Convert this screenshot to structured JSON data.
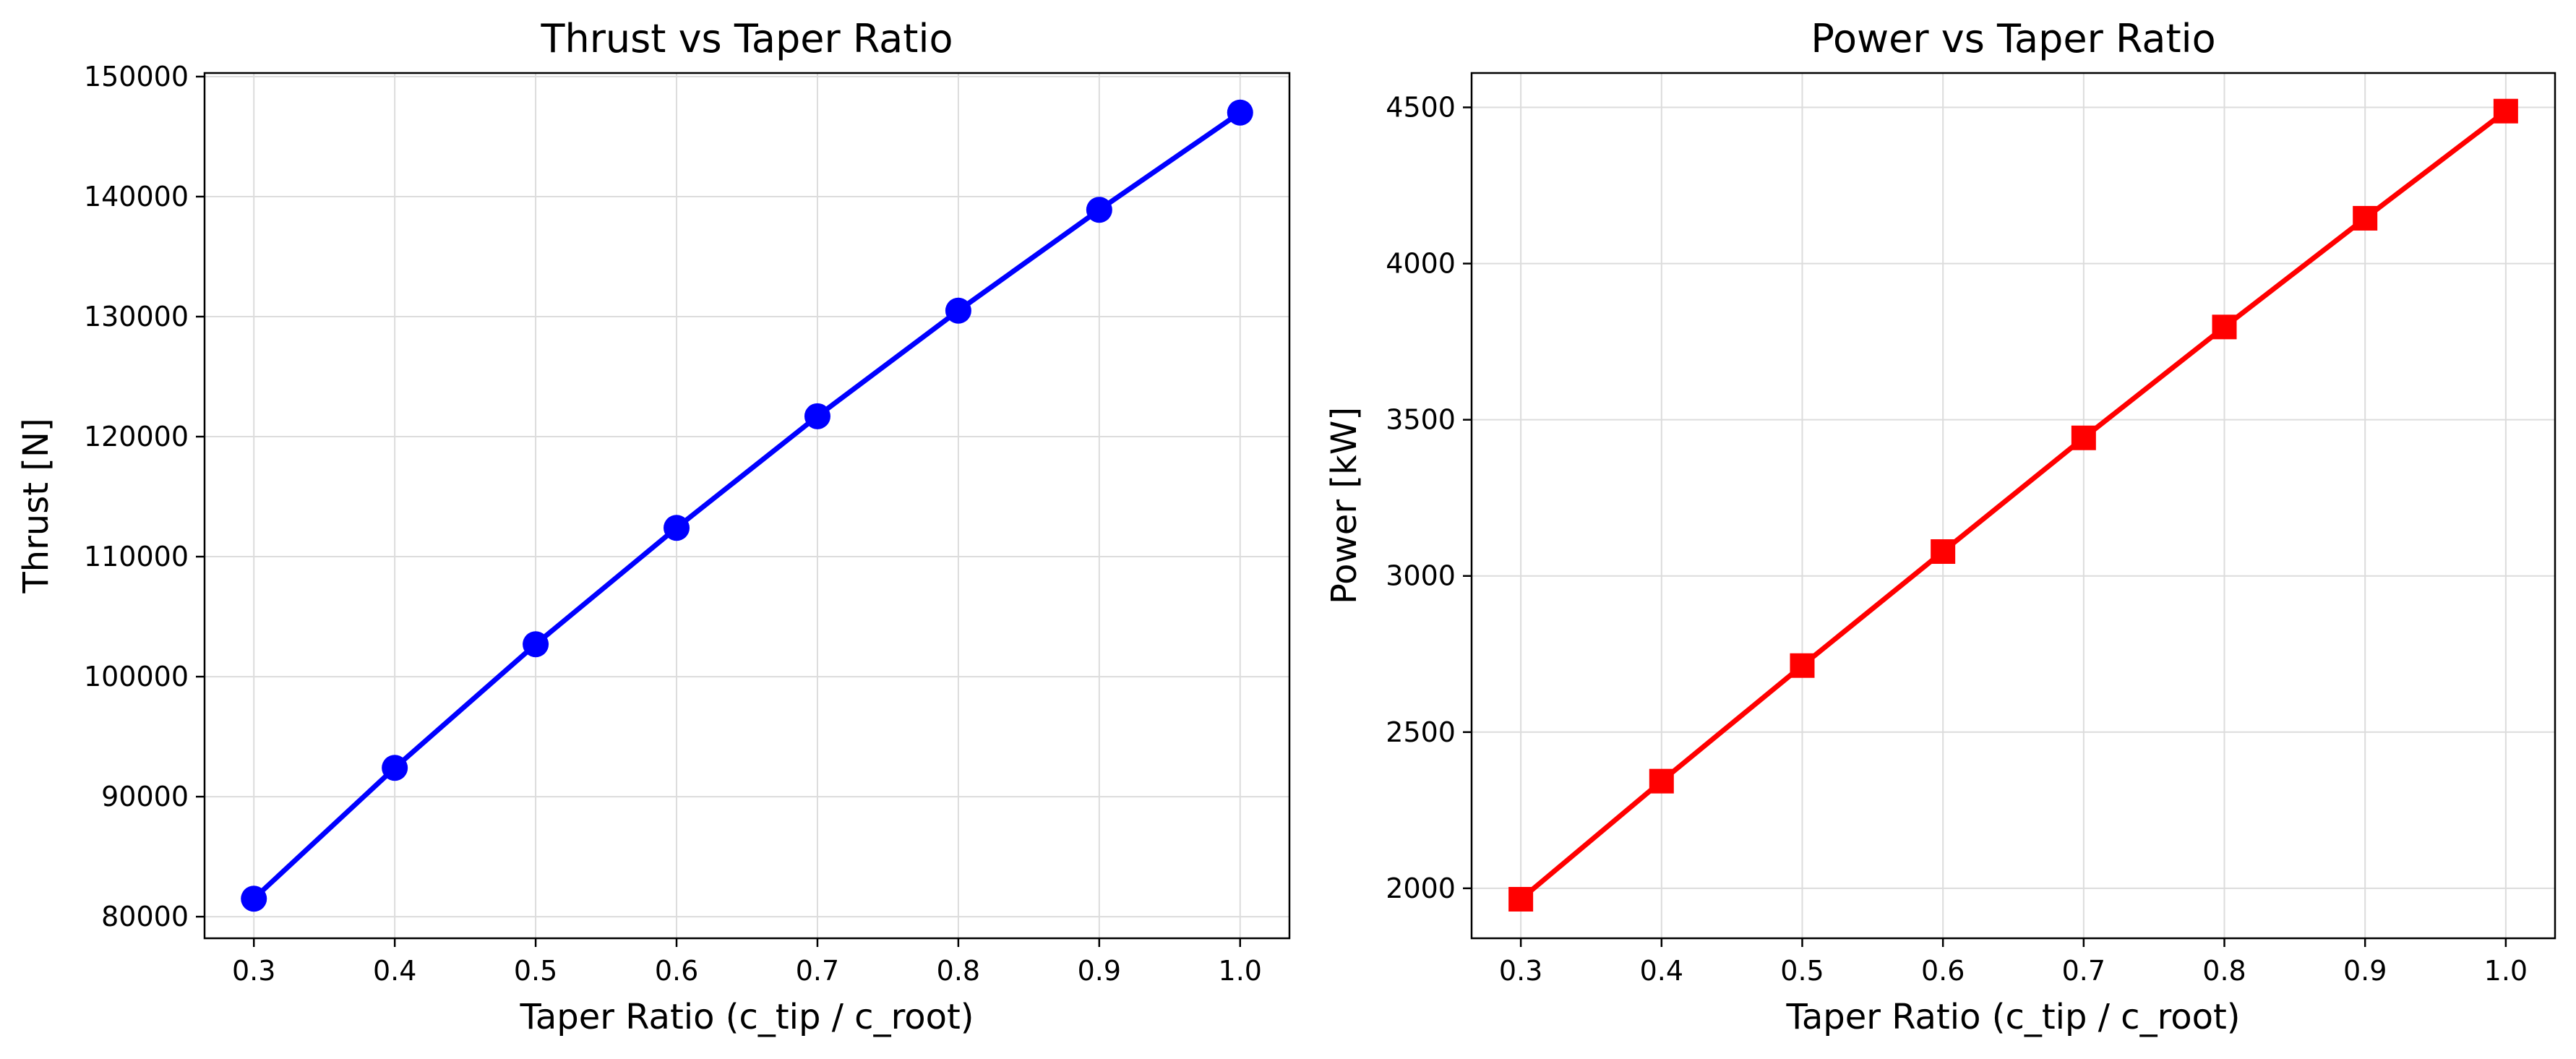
{
  "chart_data": [
    {
      "type": "line",
      "title": "Thrust vs Taper Ratio",
      "xlabel": "Taper Ratio (c_tip / c_root)",
      "ylabel": "Thrust [N]",
      "x": [
        0.3,
        0.4,
        0.5,
        0.6,
        0.7,
        0.8,
        0.9,
        1.0
      ],
      "xlim": [
        0.265,
        1.035
      ],
      "ylim": [
        78200,
        150300
      ],
      "xticks": [
        "0.3",
        "0.4",
        "0.5",
        "0.6",
        "0.7",
        "0.8",
        "0.9",
        "1.0"
      ],
      "yticks": [
        "80000",
        "90000",
        "100000",
        "110000",
        "120000",
        "130000",
        "140000",
        "150000"
      ],
      "grid": true,
      "legend": "none",
      "series": [
        {
          "color": "#0000ff",
          "marker": "circle",
          "values": [
            81500,
            92400,
            102700,
            112400,
            121700,
            130500,
            138900,
            147000
          ]
        }
      ]
    },
    {
      "type": "line",
      "title": "Power vs Taper Ratio",
      "xlabel": "Taper Ratio (c_tip / c_root)",
      "ylabel": "Power [kW]",
      "x": [
        0.3,
        0.4,
        0.5,
        0.6,
        0.7,
        0.8,
        0.9,
        1.0
      ],
      "xlim": [
        0.265,
        1.035
      ],
      "ylim": [
        1840,
        4610
      ],
      "xticks": [
        "0.3",
        "0.4",
        "0.5",
        "0.6",
        "0.7",
        "0.8",
        "0.9",
        "1.0"
      ],
      "yticks": [
        "2000",
        "2500",
        "3000",
        "3500",
        "4000",
        "4500"
      ],
      "grid": true,
      "legend": "none",
      "series": [
        {
          "color": "#ff0000",
          "marker": "square",
          "values": [
            1965,
            2343,
            2713,
            3078,
            3442,
            3797,
            4145,
            4488
          ]
        }
      ]
    }
  ]
}
